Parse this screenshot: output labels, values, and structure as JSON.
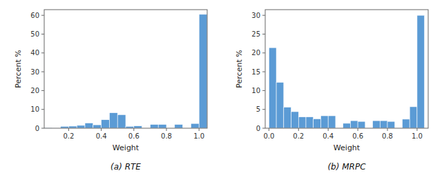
{
  "chart_data": [
    {
      "type": "histogram",
      "title": "(a) RTE",
      "x_label": "Weight",
      "y_label": "Percent %",
      "color": "#5B9BD5",
      "bins": [
        0.05,
        0.1,
        0.15,
        0.2,
        0.25,
        0.3,
        0.35,
        0.4,
        0.45,
        0.5,
        0.55,
        0.6,
        0.65,
        0.7,
        0.75,
        0.8,
        0.85,
        0.9,
        0.95,
        1.0,
        1.05
      ],
      "values": [
        0.3,
        0.2,
        1.0,
        1.1,
        1.5,
        2.8,
        1.8,
        4.5,
        8.2,
        7.2,
        1.0,
        1.2,
        0.0,
        2.0,
        2.0,
        0.0,
        2.0,
        0.0,
        2.5,
        60.5
      ],
      "xlim": [
        0.05,
        1.05
      ],
      "ylim": [
        0,
        63
      ],
      "xticks": [
        0.2,
        0.4,
        0.6,
        0.8,
        {
          "value": 1.0,
          "label": "1.0"
        }
      ],
      "yticks": [
        0,
        10,
        20,
        30,
        40,
        50,
        60
      ]
    },
    {
      "type": "histogram",
      "title": "(b) MRPC",
      "x_label": "Weight",
      "y_label": "Percent %",
      "color": "#5B9BD5",
      "bins": [
        0.0,
        0.05,
        0.1,
        0.15,
        0.2,
        0.25,
        0.3,
        0.35,
        0.4,
        0.45,
        0.5,
        0.55,
        0.6,
        0.65,
        0.7,
        0.75,
        0.8,
        0.85,
        0.9,
        0.95,
        1.0,
        1.05
      ],
      "values": [
        21.4,
        12.2,
        5.6,
        4.4,
        3.0,
        3.0,
        2.5,
        3.3,
        3.3,
        0.0,
        1.3,
        2.0,
        1.8,
        0.0,
        2.0,
        2.0,
        1.8,
        0.0,
        2.4,
        5.7,
        30.0
      ],
      "xlim": [
        -0.025,
        1.075
      ],
      "ylim": [
        0,
        31.5
      ],
      "xticks": [
        {
          "value": 0.0,
          "label": "0.0"
        },
        0.2,
        0.4,
        0.6,
        0.8,
        {
          "value": 1.0,
          "label": "1.0"
        }
      ],
      "yticks": [
        0,
        5,
        10,
        15,
        20,
        25,
        30
      ]
    }
  ]
}
